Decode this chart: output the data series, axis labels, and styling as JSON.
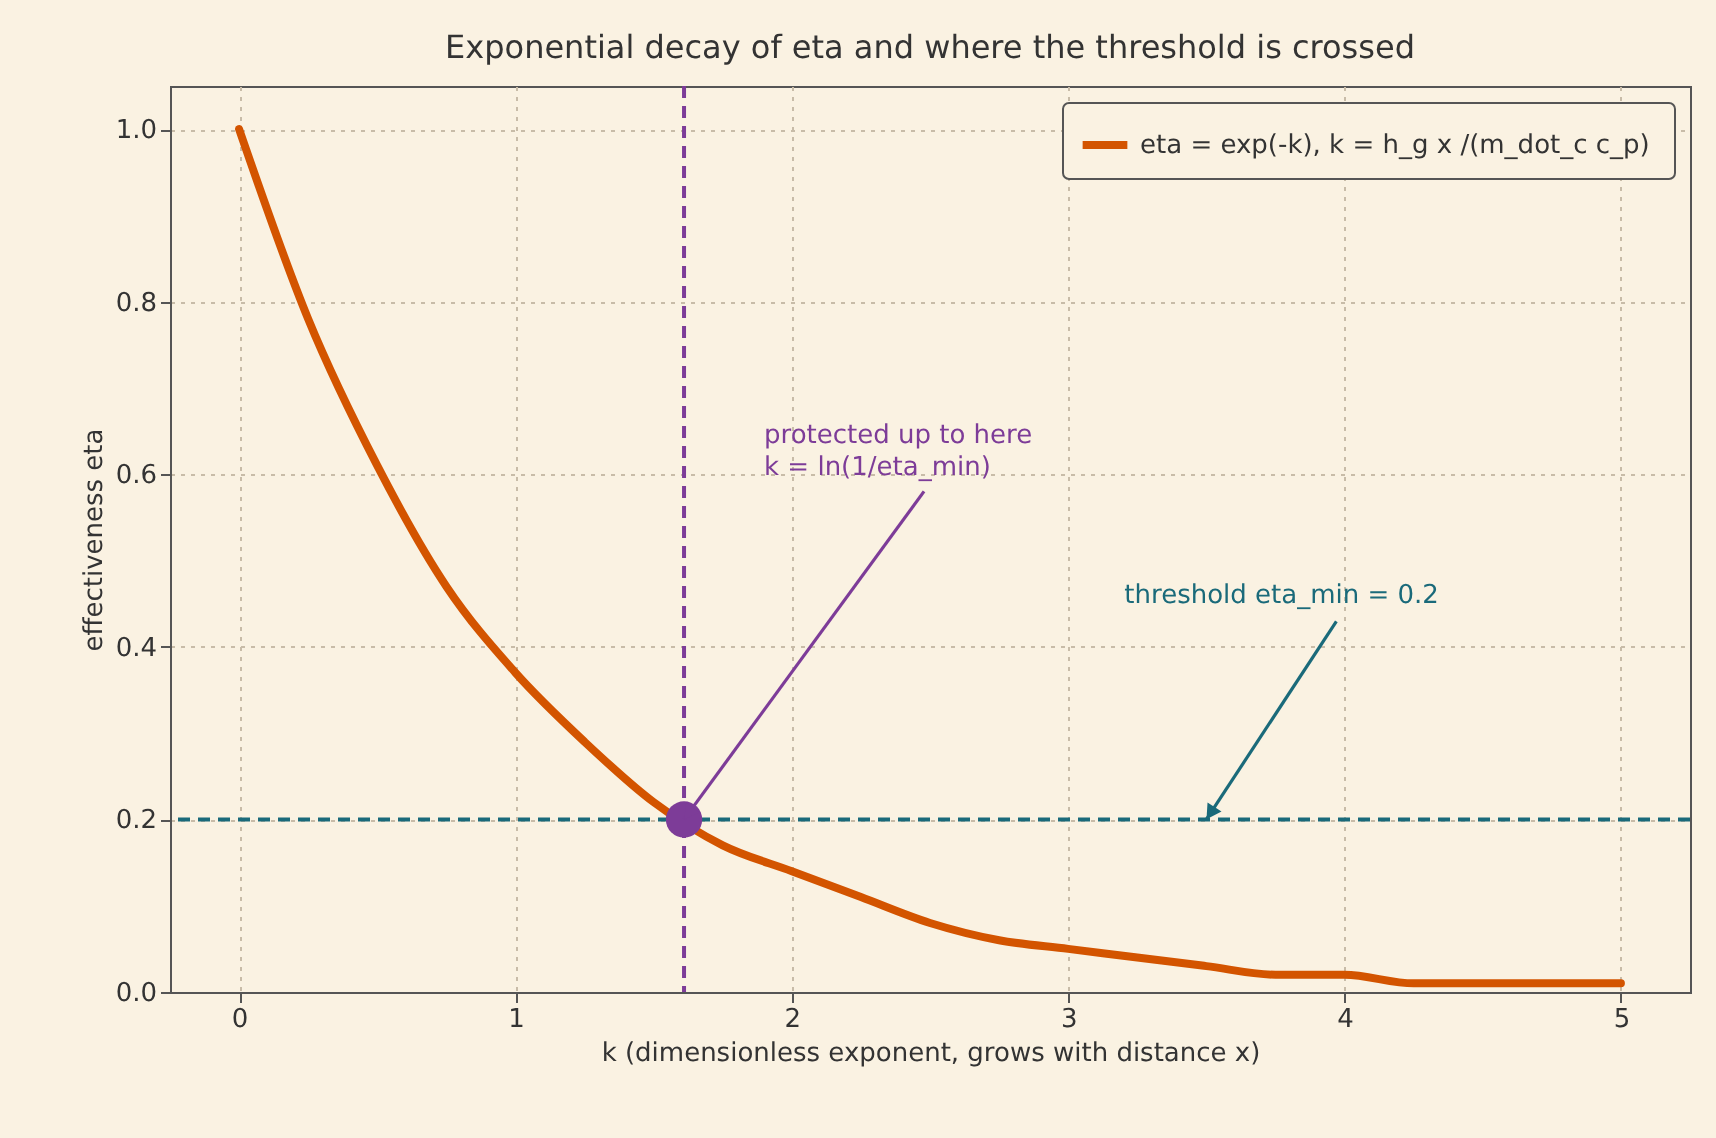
{
  "chart_data": {
    "type": "line",
    "title": "Exponential decay of eta and where the threshold is crossed",
    "xlabel": "k  (dimensionless exponent, grows with distance x)",
    "ylabel": "effectiveness  eta",
    "series": [
      {
        "name": "eta = exp(-k),  k = h_g x /(m_dot_c c_p)",
        "color": "#d35400",
        "x": [
          0,
          0.25,
          0.5,
          0.75,
          1,
          1.25,
          1.5,
          1.75,
          2,
          2.25,
          2.5,
          2.75,
          3,
          3.25,
          3.5,
          3.75,
          4,
          4.25,
          4.5,
          4.75,
          5
        ],
        "values": [
          1.0,
          0.78,
          0.61,
          0.47,
          0.37,
          0.29,
          0.22,
          0.17,
          0.14,
          0.11,
          0.08,
          0.06,
          0.05,
          0.04,
          0.03,
          0.02,
          0.02,
          0.01,
          0.01,
          0.01,
          0.01
        ]
      },
      {
        "type": "scatter",
        "color": "#7d3c98",
        "marker": "circle",
        "x": [
          1.61
        ],
        "values": [
          0.2
        ]
      }
    ],
    "ref_lines": [
      {
        "axis": "y",
        "value": 0.2,
        "color": "#1a6a7a",
        "line_style": "dashed"
      },
      {
        "axis": "x",
        "value": 1.61,
        "color": "#7d3c98",
        "line_style": "dashed"
      }
    ],
    "annotations": [
      {
        "text": "protected up to here\nk = ln(1/eta_min)",
        "x": 1.61,
        "y": 0.2
      },
      {
        "text": "threshold eta_min = 0.2",
        "x": 3.5,
        "y": 0.2
      }
    ],
    "xlim": [
      -0.25,
      5.25
    ],
    "xticks": [
      0,
      1,
      2,
      3,
      4,
      5
    ],
    "ylim": [
      0,
      1.05
    ],
    "yticks": [
      {
        "value": 0,
        "label": "0.0"
      },
      0.2,
      0.4,
      0.6,
      0.8,
      {
        "value": 1,
        "label": "1.0"
      }
    ],
    "grid": true,
    "legend": "top right",
    "line_style": "solid"
  }
}
